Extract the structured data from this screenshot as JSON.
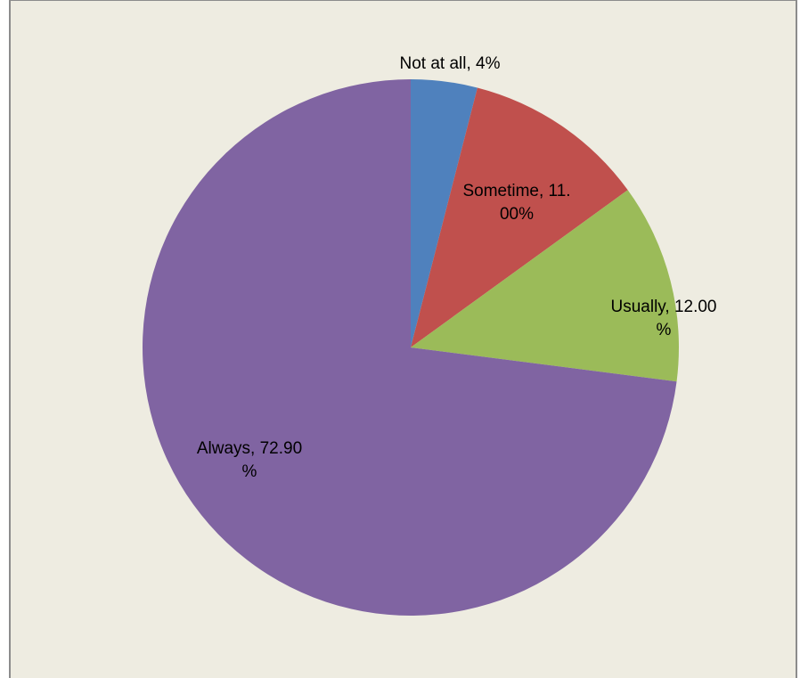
{
  "chart_data": {
    "type": "pie",
    "title": "",
    "categories": [
      "Not at all",
      "Sometime",
      "Usually",
      "Always"
    ],
    "values": [
      4,
      11,
      12,
      72.9
    ],
    "colors": [
      "#4F81BD",
      "#C0504D",
      "#9BBB59",
      "#8064A2"
    ],
    "background": "#EEECE1",
    "labels": [
      {
        "lines": [
          "Not at all, 4%"
        ]
      },
      {
        "lines": [
          "Sometime, 11.",
          "00%"
        ]
      },
      {
        "lines": [
          "Usually, 12.00",
          "%"
        ]
      },
      {
        "lines": [
          "Always, 72.90",
          "%"
        ]
      }
    ],
    "legend": "none",
    "grid": false
  }
}
